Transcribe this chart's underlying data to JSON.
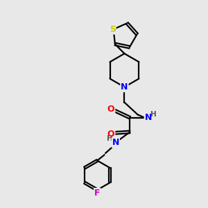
{
  "background_color": "#e8e8e8",
  "atom_colors": {
    "N": "#0000ff",
    "O": "#ff0000",
    "F": "#cc00cc",
    "S": "#cccc00",
    "H": "#555555"
  },
  "line_width": 1.6,
  "font_size": 9,
  "fig_size": [
    3.0,
    3.0
  ],
  "dpi": 100
}
